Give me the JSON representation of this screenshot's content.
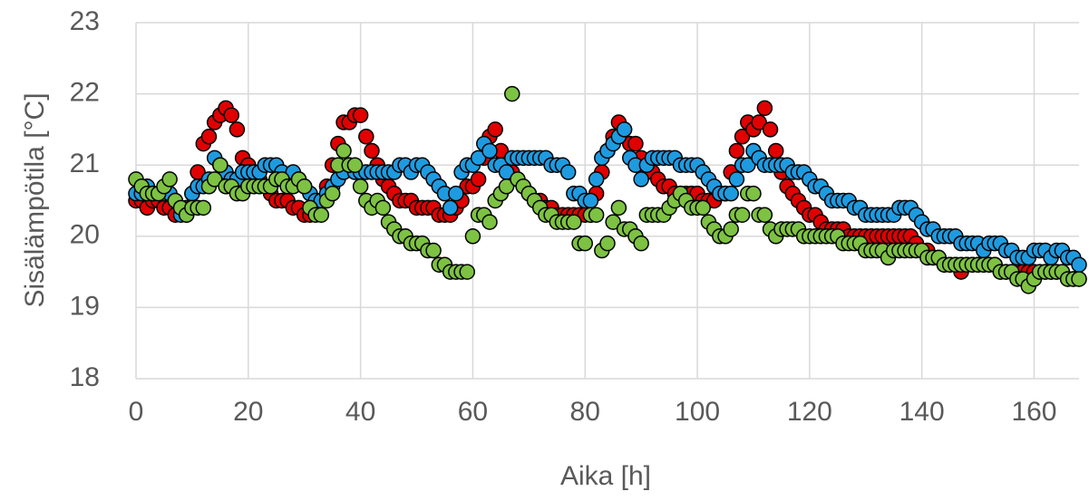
{
  "chart_data": {
    "type": "scatter",
    "x_label": "Aika [h]",
    "y_label": "Sisälämpötila [°C]",
    "xlim": [
      0,
      168
    ],
    "ylim": [
      18,
      23
    ],
    "xticks": [
      0,
      20,
      40,
      60,
      80,
      100,
      120,
      140,
      160
    ],
    "yticks": [
      18,
      19,
      20,
      21,
      22,
      23
    ],
    "grid": true,
    "x": [
      0,
      1,
      2,
      3,
      4,
      5,
      6,
      7,
      8,
      9,
      10,
      11,
      12,
      13,
      14,
      15,
      16,
      17,
      18,
      19,
      20,
      21,
      22,
      23,
      24,
      25,
      26,
      27,
      28,
      29,
      30,
      31,
      32,
      33,
      34,
      35,
      36,
      37,
      38,
      39,
      40,
      41,
      42,
      43,
      44,
      45,
      46,
      47,
      48,
      49,
      50,
      51,
      52,
      53,
      54,
      55,
      56,
      57,
      58,
      59,
      60,
      61,
      62,
      63,
      64,
      65,
      66,
      67,
      68,
      69,
      70,
      71,
      72,
      73,
      74,
      75,
      76,
      77,
      78,
      79,
      80,
      81,
      82,
      83,
      84,
      85,
      86,
      87,
      88,
      89,
      90,
      91,
      92,
      93,
      94,
      95,
      96,
      97,
      98,
      99,
      100,
      101,
      102,
      103,
      104,
      105,
      106,
      107,
      108,
      109,
      110,
      111,
      112,
      113,
      114,
      115,
      116,
      117,
      118,
      119,
      120,
      121,
      122,
      123,
      124,
      125,
      126,
      127,
      128,
      129,
      130,
      131,
      132,
      133,
      134,
      135,
      136,
      137,
      138,
      139,
      140,
      141,
      142,
      143,
      144,
      145,
      146,
      147,
      148,
      149,
      150,
      151,
      152,
      153,
      154,
      155,
      156,
      157,
      158,
      159,
      160,
      161,
      162,
      163,
      164,
      165,
      166,
      167,
      168
    ],
    "series": [
      {
        "color": "#e00000",
        "values": [
          20.5,
          20.5,
          20.4,
          20.5,
          20.5,
          20.4,
          20.4,
          20.3,
          20.4,
          20.4,
          20.6,
          20.9,
          21.3,
          21.4,
          21.6,
          21.7,
          21.8,
          21.7,
          21.5,
          21.1,
          21.0,
          20.9,
          20.8,
          20.7,
          20.6,
          20.5,
          20.5,
          20.5,
          20.4,
          20.4,
          20.3,
          20.3,
          20.4,
          20.5,
          20.7,
          21.0,
          21.3,
          21.6,
          21.6,
          21.7,
          21.7,
          21.4,
          21.2,
          21.0,
          20.8,
          20.7,
          20.6,
          20.5,
          20.5,
          20.5,
          20.4,
          20.4,
          20.4,
          20.4,
          20.3,
          20.3,
          20.3,
          20.4,
          20.5,
          20.7,
          20.7,
          20.8,
          21.1,
          21.4,
          21.5,
          21.2,
          21.0,
          20.9,
          20.8,
          20.7,
          20.6,
          20.5,
          20.5,
          20.4,
          20.4,
          20.3,
          20.3,
          20.3,
          20.3,
          20.3,
          20.3,
          20.3,
          20.6,
          20.9,
          21.2,
          21.4,
          21.6,
          21.5,
          21.3,
          21.3,
          21.1,
          20.9,
          20.9,
          20.8,
          20.7,
          20.7,
          20.6,
          20.6,
          20.6,
          20.6,
          20.6,
          20.5,
          20.5,
          20.5,
          20.6,
          20.6,
          20.9,
          21.2,
          21.4,
          21.6,
          21.5,
          21.6,
          21.8,
          21.5,
          21.2,
          20.9,
          20.7,
          20.6,
          20.5,
          20.4,
          20.3,
          20.3,
          20.2,
          20.1,
          20.1,
          20.1,
          20.1,
          20.0,
          20.0,
          20.0,
          20.0,
          20.0,
          20.0,
          20.0,
          20.0,
          20.0,
          20.0,
          20.0,
          20.0,
          19.9,
          19.8,
          19.8,
          19.7,
          19.7,
          19.6,
          19.6,
          19.6,
          19.5,
          19.6,
          19.6,
          19.6,
          19.6,
          19.6,
          19.6,
          19.5,
          19.5,
          19.5,
          19.5,
          19.5,
          19.5,
          19.5,
          19.5,
          19.5,
          19.5,
          19.5,
          19.5,
          19.4,
          19.4,
          19.4
        ]
      },
      {
        "color": "#1e9be0",
        "values": [
          20.6,
          20.6,
          20.7,
          20.6,
          20.6,
          20.6,
          20.6,
          20.5,
          20.3,
          20.3,
          20.6,
          20.7,
          20.7,
          20.8,
          21.1,
          21.0,
          20.9,
          20.8,
          20.8,
          20.9,
          20.9,
          20.9,
          20.9,
          21.0,
          21.0,
          21.0,
          20.9,
          20.8,
          20.9,
          20.8,
          20.7,
          20.6,
          20.5,
          20.5,
          20.6,
          20.7,
          20.8,
          20.9,
          21.0,
          20.9,
          20.9,
          20.9,
          20.9,
          20.9,
          20.9,
          20.9,
          20.9,
          21.0,
          21.0,
          20.9,
          21.0,
          21.0,
          20.9,
          20.8,
          20.7,
          20.6,
          20.4,
          20.6,
          20.9,
          21.0,
          21.0,
          21.1,
          21.3,
          21.2,
          21.0,
          21.0,
          20.9,
          21.1,
          21.1,
          21.1,
          21.1,
          21.1,
          21.1,
          21.1,
          21.0,
          21.0,
          21.0,
          20.9,
          20.6,
          20.6,
          20.5,
          20.5,
          20.8,
          21.1,
          21.2,
          21.3,
          21.4,
          21.5,
          21.1,
          21.0,
          20.8,
          21.0,
          21.1,
          21.1,
          21.1,
          21.1,
          21.1,
          21.0,
          21.0,
          21.0,
          21.0,
          20.9,
          20.8,
          20.7,
          20.6,
          20.6,
          20.6,
          20.8,
          21.0,
          21.0,
          21.2,
          21.1,
          21.0,
          21.0,
          21.0,
          21.0,
          21.0,
          20.9,
          20.9,
          20.9,
          20.8,
          20.7,
          20.7,
          20.6,
          20.5,
          20.5,
          20.5,
          20.5,
          20.4,
          20.4,
          20.3,
          20.3,
          20.3,
          20.3,
          20.3,
          20.3,
          20.4,
          20.4,
          20.4,
          20.3,
          20.2,
          20.1,
          20.1,
          20.0,
          20.0,
          20.0,
          20.0,
          19.9,
          19.9,
          19.9,
          19.9,
          19.8,
          19.9,
          19.9,
          19.9,
          19.8,
          19.8,
          19.7,
          19.7,
          19.7,
          19.8,
          19.8,
          19.8,
          19.7,
          19.8,
          19.8,
          19.7,
          19.7,
          19.6
        ]
      },
      {
        "color": "#7dc242",
        "values": [
          20.8,
          20.7,
          20.6,
          20.6,
          20.6,
          20.7,
          20.8,
          20.5,
          20.4,
          20.3,
          20.4,
          20.4,
          20.4,
          20.7,
          20.8,
          21.0,
          20.7,
          20.7,
          20.6,
          20.6,
          20.7,
          20.7,
          20.7,
          20.7,
          20.7,
          20.8,
          20.8,
          20.7,
          20.7,
          20.8,
          20.7,
          20.4,
          20.3,
          20.3,
          20.5,
          20.6,
          21.0,
          21.2,
          21.0,
          21.0,
          20.7,
          20.5,
          20.4,
          20.5,
          20.4,
          20.2,
          20.1,
          20.0,
          20.0,
          19.9,
          19.9,
          19.9,
          19.8,
          19.8,
          19.6,
          19.6,
          19.5,
          19.5,
          19.5,
          19.5,
          20.0,
          20.3,
          20.3,
          20.2,
          20.5,
          20.6,
          20.7,
          22.0,
          20.8,
          20.7,
          20.6,
          20.5,
          20.4,
          20.3,
          20.3,
          20.2,
          20.2,
          20.2,
          20.2,
          19.9,
          19.9,
          20.3,
          20.3,
          19.8,
          19.9,
          20.2,
          20.4,
          20.1,
          20.1,
          20.0,
          19.9,
          20.3,
          20.3,
          20.3,
          20.3,
          20.4,
          20.5,
          20.6,
          20.5,
          20.4,
          20.4,
          20.4,
          20.2,
          20.1,
          20.0,
          20.0,
          20.1,
          20.3,
          20.3,
          20.6,
          20.6,
          20.3,
          20.3,
          20.1,
          20.0,
          20.1,
          20.1,
          20.1,
          20.1,
          20.0,
          20.0,
          20.0,
          20.0,
          20.0,
          20.0,
          20.0,
          19.9,
          19.9,
          19.9,
          19.9,
          19.8,
          19.8,
          19.8,
          19.8,
          19.7,
          19.8,
          19.8,
          19.8,
          19.8,
          19.8,
          19.8,
          19.7,
          19.7,
          19.7,
          19.6,
          19.6,
          19.6,
          19.6,
          19.6,
          19.6,
          19.6,
          19.6,
          19.6,
          19.6,
          19.5,
          19.5,
          19.5,
          19.4,
          19.4,
          19.3,
          19.4,
          19.5,
          19.5,
          19.5,
          19.5,
          19.5,
          19.4,
          19.4,
          19.4
        ]
      }
    ]
  }
}
